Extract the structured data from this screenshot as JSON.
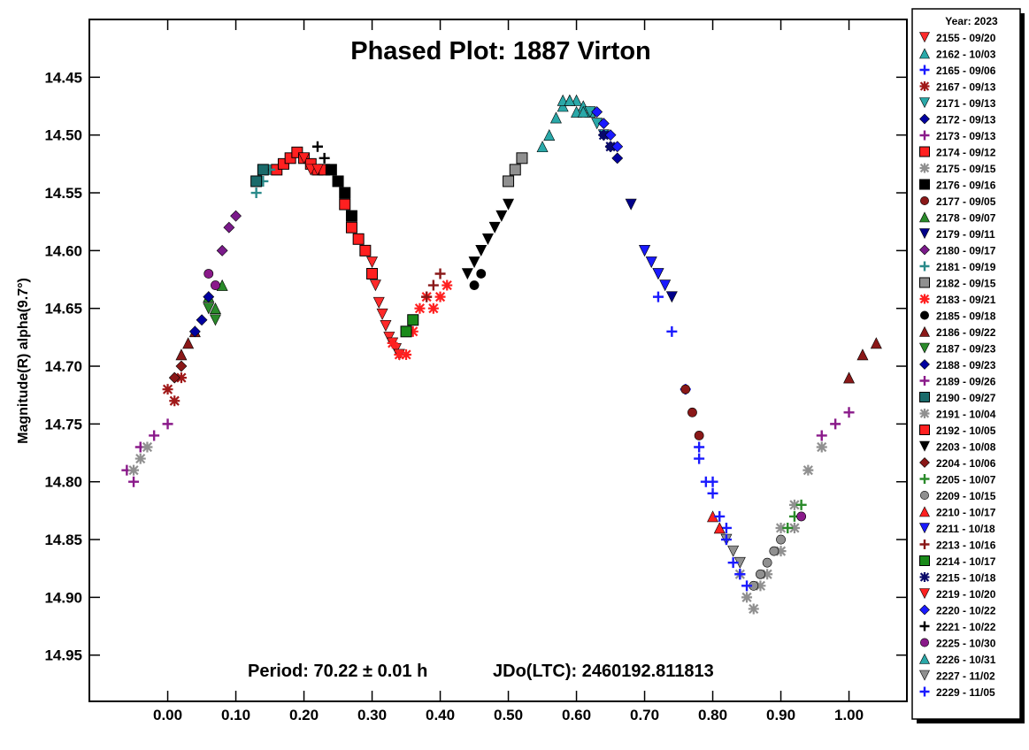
{
  "chart_data": {
    "type": "scatter",
    "title": "Phased Plot: 1887 Virton",
    "xlabel": "",
    "ylabel": "Magnitude(R) alpha(9.7°)",
    "xlim": [
      -0.115,
      1.085
    ],
    "ylim": [
      14.4,
      14.99
    ],
    "y_inverted": true,
    "x_ticks": [
      "0.00",
      "0.10",
      "0.20",
      "0.30",
      "0.40",
      "0.50",
      "0.60",
      "0.70",
      "0.80",
      "0.90",
      "1.00"
    ],
    "y_ticks": [
      "14.45",
      "14.50",
      "14.55",
      "14.60",
      "14.65",
      "14.70",
      "14.75",
      "14.80",
      "14.85",
      "14.90",
      "14.95"
    ],
    "annotation_period": "Period: 70.22 ± 0.01 h",
    "annotation_epoch": "JDo(LTC): 2460192.811813",
    "legend_title": "Year: 2023",
    "legend_position": "right",
    "series": [
      {
        "name": "2155 - 09/20",
        "color": "#ff2a2a",
        "marker": "triangle-down",
        "x": [
          0.3,
          0.305,
          0.31,
          0.315,
          0.32,
          0.325,
          0.33,
          0.335,
          0.34
        ],
        "y": [
          14.61,
          14.63,
          14.645,
          14.655,
          14.665,
          14.675,
          14.68,
          14.685,
          14.69
        ]
      },
      {
        "name": "2162 - 10/03",
        "color": "#2aa8a8",
        "marker": "triangle-up",
        "x": [
          0.55,
          0.56,
          0.57,
          0.58,
          0.59,
          0.6,
          0.61,
          0.62
        ],
        "y": [
          14.51,
          14.5,
          14.485,
          14.475,
          14.47,
          14.47,
          14.475,
          14.48
        ]
      },
      {
        "name": "2165 - 09/06",
        "color": "#1a1aff",
        "marker": "plus",
        "x": [
          0.72,
          0.74,
          0.76,
          0.78,
          0.8,
          0.82,
          0.84
        ],
        "y": [
          14.64,
          14.67,
          14.72,
          14.77,
          14.8,
          14.84,
          14.88
        ]
      },
      {
        "name": "2167 - 09/13",
        "color": "#a01818",
        "marker": "star",
        "x": [
          0.0,
          0.01,
          0.02
        ],
        "y": [
          14.72,
          14.73,
          14.71
        ]
      },
      {
        "name": "2171 - 09/13",
        "color": "#2aa8a8",
        "marker": "triangle-down",
        "x": [
          0.62,
          0.63,
          0.64
        ],
        "y": [
          14.48,
          14.49,
          14.5
        ]
      },
      {
        "name": "2172 - 09/13",
        "color": "#0000a0",
        "marker": "diamond",
        "x": [
          0.64,
          0.65,
          0.66
        ],
        "y": [
          14.5,
          14.51,
          14.52
        ]
      },
      {
        "name": "2173 - 09/13",
        "color": "#8a1a8a",
        "marker": "plus",
        "x": [
          -0.06,
          -0.05,
          -0.04,
          -0.02,
          0.0
        ],
        "y": [
          14.79,
          14.8,
          14.77,
          14.76,
          14.75
        ]
      },
      {
        "name": "2174 - 09/12",
        "color": "#ff2020",
        "marker": "square",
        "x": [
          0.16,
          0.17,
          0.18,
          0.19,
          0.2,
          0.21,
          0.22,
          0.23
        ],
        "y": [
          14.53,
          14.525,
          14.52,
          14.515,
          14.52,
          14.525,
          14.53,
          14.53
        ]
      },
      {
        "name": "2175 - 09/15",
        "color": "#909090",
        "marker": "star",
        "x": [
          -0.05,
          -0.04,
          -0.03,
          0.9,
          0.92,
          0.94,
          0.96
        ],
        "y": [
          14.79,
          14.78,
          14.77,
          14.84,
          14.82,
          14.79,
          14.77
        ]
      },
      {
        "name": "2176 - 09/16",
        "color": "#000000",
        "marker": "square",
        "x": [
          0.24,
          0.25,
          0.26,
          0.27
        ],
        "y": [
          14.53,
          14.54,
          14.55,
          14.57
        ]
      },
      {
        "name": "2177 - 09/05",
        "color": "#8a1818",
        "marker": "circle",
        "x": [
          0.76,
          0.77,
          0.78
        ],
        "y": [
          14.72,
          14.74,
          14.76
        ]
      },
      {
        "name": "2178 - 09/07",
        "color": "#2a8a2a",
        "marker": "triangle-up",
        "x": [
          0.06,
          0.07,
          0.08
        ],
        "y": [
          14.64,
          14.65,
          14.63
        ]
      },
      {
        "name": "2179 - 09/11",
        "color": "#00008a",
        "marker": "triangle-down",
        "x": [
          0.68,
          0.7,
          0.72,
          0.74
        ],
        "y": [
          14.56,
          14.6,
          14.62,
          14.64
        ]
      },
      {
        "name": "2180 - 09/17",
        "color": "#7a1a8a",
        "marker": "diamond",
        "x": [
          0.08,
          0.09,
          0.1
        ],
        "y": [
          14.6,
          14.58,
          14.57
        ]
      },
      {
        "name": "2181 - 09/19",
        "color": "#2a8a8a",
        "marker": "plus",
        "x": [
          0.13,
          0.14,
          0.15
        ],
        "y": [
          14.55,
          14.54,
          14.53
        ]
      },
      {
        "name": "2182 - 09/15",
        "color": "#909090",
        "marker": "square",
        "x": [
          0.5,
          0.51,
          0.52
        ],
        "y": [
          14.54,
          14.53,
          14.52
        ]
      },
      {
        "name": "2183 - 09/21",
        "color": "#ff2020",
        "marker": "star",
        "x": [
          0.33,
          0.34,
          0.35,
          0.36,
          0.37,
          0.38,
          0.39,
          0.4,
          0.41
        ],
        "y": [
          14.68,
          14.69,
          14.69,
          14.67,
          14.65,
          14.64,
          14.65,
          14.64,
          14.63
        ]
      },
      {
        "name": "2185 - 09/18",
        "color": "#000000",
        "marker": "circle",
        "x": [
          0.45,
          0.46
        ],
        "y": [
          14.63,
          14.62
        ]
      },
      {
        "name": "2186 - 09/22",
        "color": "#8a1818",
        "marker": "triangle-up",
        "x": [
          0.02,
          0.03,
          0.04,
          1.0,
          1.02,
          1.04
        ],
        "y": [
          14.69,
          14.68,
          14.67,
          14.71,
          14.69,
          14.68
        ]
      },
      {
        "name": "2187 - 09/23",
        "color": "#2a8a2a",
        "marker": "triangle-down",
        "x": [
          0.06,
          0.07
        ],
        "y": [
          14.65,
          14.66
        ]
      },
      {
        "name": "2188 - 09/23",
        "color": "#0000a0",
        "marker": "diamond",
        "x": [
          0.04,
          0.05,
          0.06
        ],
        "y": [
          14.67,
          14.66,
          14.64
        ]
      },
      {
        "name": "2189 - 09/26",
        "color": "#8a1a8a",
        "marker": "plus",
        "x": [
          0.96,
          0.98,
          1.0
        ],
        "y": [
          14.76,
          14.75,
          14.74
        ]
      },
      {
        "name": "2190 - 09/27",
        "color": "#1a6a6a",
        "marker": "square",
        "x": [
          0.13,
          0.14
        ],
        "y": [
          14.54,
          14.53
        ]
      },
      {
        "name": "2191 - 10/04",
        "color": "#909090",
        "marker": "star",
        "x": [
          0.84,
          0.85,
          0.86,
          0.87,
          0.88,
          0.9,
          0.92
        ],
        "y": [
          14.88,
          14.9,
          14.91,
          14.89,
          14.88,
          14.86,
          14.84
        ]
      },
      {
        "name": "2192 - 10/05",
        "color": "#ff2020",
        "marker": "square",
        "x": [
          0.26,
          0.27,
          0.28,
          0.29,
          0.3
        ],
        "y": [
          14.56,
          14.58,
          14.59,
          14.6,
          14.62
        ]
      },
      {
        "name": "2203 - 10/08",
        "color": "#000000",
        "marker": "triangle-down",
        "x": [
          0.44,
          0.45,
          0.46,
          0.47,
          0.48,
          0.49,
          0.5
        ],
        "y": [
          14.62,
          14.61,
          14.6,
          14.59,
          14.58,
          14.57,
          14.56
        ]
      },
      {
        "name": "2204 - 10/06",
        "color": "#8a1818",
        "marker": "diamond",
        "x": [
          0.01,
          0.02
        ],
        "y": [
          14.71,
          14.7
        ]
      },
      {
        "name": "2205 - 10/07",
        "color": "#2a8a2a",
        "marker": "plus",
        "x": [
          0.91,
          0.92,
          0.93
        ],
        "y": [
          14.84,
          14.83,
          14.82
        ]
      },
      {
        "name": "2209 - 10/15",
        "color": "#909090",
        "marker": "circle",
        "x": [
          0.86,
          0.87,
          0.88,
          0.89,
          0.9
        ],
        "y": [
          14.89,
          14.88,
          14.87,
          14.86,
          14.85
        ]
      },
      {
        "name": "2210 - 10/17",
        "color": "#ff2020",
        "marker": "triangle-up",
        "x": [
          0.8,
          0.81
        ],
        "y": [
          14.83,
          14.84
        ]
      },
      {
        "name": "2211 - 10/18",
        "color": "#1a1aff",
        "marker": "triangle-down",
        "x": [
          0.7,
          0.71,
          0.72,
          0.73
        ],
        "y": [
          14.6,
          14.61,
          14.62,
          14.63
        ]
      },
      {
        "name": "2213 - 10/16",
        "color": "#8a1818",
        "marker": "plus",
        "x": [
          0.38,
          0.39,
          0.4
        ],
        "y": [
          14.64,
          14.63,
          14.62
        ]
      },
      {
        "name": "2214 - 10/17",
        "color": "#1a8a1a",
        "marker": "square",
        "x": [
          0.35,
          0.36
        ],
        "y": [
          14.67,
          14.66
        ]
      },
      {
        "name": "2215 - 10/18",
        "color": "#0a0a6a",
        "marker": "star",
        "x": [
          0.64,
          0.65
        ],
        "y": [
          14.5,
          14.51
        ]
      },
      {
        "name": "2219 - 10/20",
        "color": "#ff2020",
        "marker": "triangle-down",
        "x": [
          0.2,
          0.21,
          0.22
        ],
        "y": [
          14.52,
          14.53,
          14.53
        ]
      },
      {
        "name": "2220 - 10/22",
        "color": "#1a1aff",
        "marker": "diamond",
        "x": [
          0.63,
          0.64,
          0.65,
          0.66
        ],
        "y": [
          14.48,
          14.49,
          14.5,
          14.51
        ]
      },
      {
        "name": "2221 - 10/22",
        "color": "#000000",
        "marker": "plus",
        "x": [
          0.22,
          0.23,
          0.24,
          0.25
        ],
        "y": [
          14.51,
          14.52,
          14.53,
          14.54
        ]
      },
      {
        "name": "2225 - 10/30",
        "color": "#8a1a8a",
        "marker": "circle",
        "x": [
          0.06,
          0.07,
          0.93
        ],
        "y": [
          14.62,
          14.63,
          14.83
        ]
      },
      {
        "name": "2226 - 10/31",
        "color": "#2aa8a8",
        "marker": "triangle-up",
        "x": [
          0.58,
          0.59,
          0.6,
          0.61
        ],
        "y": [
          14.47,
          14.47,
          14.48,
          14.48
        ]
      },
      {
        "name": "2227 - 11/02",
        "color": "#909090",
        "marker": "triangle-down",
        "x": [
          0.82,
          0.83,
          0.84
        ],
        "y": [
          14.85,
          14.86,
          14.87
        ]
      },
      {
        "name": "2229 - 11/05",
        "color": "#1a1aff",
        "marker": "plus",
        "x": [
          0.78,
          0.79,
          0.8,
          0.81,
          0.82,
          0.83,
          0.84,
          0.85
        ],
        "y": [
          14.78,
          14.8,
          14.81,
          14.83,
          14.85,
          14.87,
          14.88,
          14.89
        ]
      }
    ]
  }
}
